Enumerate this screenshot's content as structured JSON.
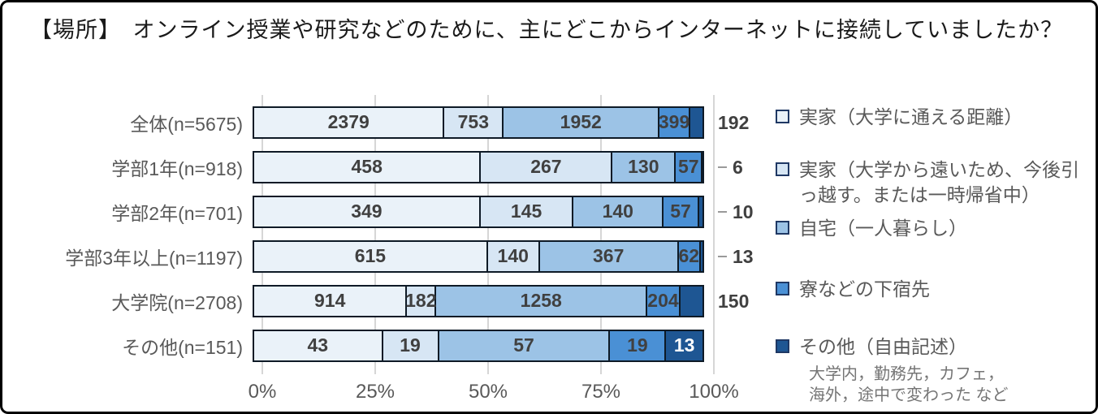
{
  "title": "【場所】　オンライン授業や研究などのために、主にどこからインターネットに接続していましたか？",
  "chart_data": {
    "type": "bar",
    "subtype": "horizontal-100pct-stacked",
    "title": "【場所】　オンライン授業や研究などのために、主にどこからインターネットに接続していましたか？",
    "categories": [
      "全体(n=5675)",
      "学部1年(n=918)",
      "学部2年(n=701)",
      "学部3年以上(n=1197)",
      "大学院(n=2708)",
      "その他(n=151)"
    ],
    "row_totals": [
      5675,
      918,
      701,
      1197,
      2708,
      151
    ],
    "series": [
      {
        "name": "実家（大学に通える距離）",
        "color": "#EAF2F9",
        "values": [
          2379,
          458,
          349,
          615,
          914,
          43
        ]
      },
      {
        "name": "実家（大学から遠いため、今後引っ越す。または一時帰省中）",
        "color": "#D7E6F4",
        "values": [
          753,
          267,
          145,
          140,
          182,
          19
        ]
      },
      {
        "name": "自宅（一人暮らし）",
        "color": "#9CC3E6",
        "values": [
          1952,
          130,
          140,
          367,
          1258,
          57
        ]
      },
      {
        "name": "寮などの下宿先",
        "color": "#4A90D5",
        "values": [
          399,
          57,
          57,
          62,
          204,
          19
        ]
      },
      {
        "name": "その他（自由記述）",
        "color": "#1E5693",
        "values": [
          192,
          6,
          10,
          13,
          150,
          13
        ]
      }
    ],
    "x_ticks": [
      "0%",
      "25%",
      "50%",
      "75%",
      "100%"
    ],
    "xlim": [
      0,
      100
    ],
    "grid": true,
    "legend_position": "right",
    "legend_note_lines": [
      "大学内，勤務先，カフェ，",
      "海外，途中で変わった など"
    ],
    "last_segment_label_placement": [
      "outside",
      "outside-dash",
      "outside-dash",
      "outside-dash",
      "outside",
      "inside-white"
    ]
  },
  "styles": {
    "title_text": "#1A1A1A",
    "category_text": "#595959",
    "axis_text": "#595959",
    "legend_text": "#595959",
    "note_text": "#757575",
    "label_in_bar": "#404040",
    "gridline": "#D6D6D6",
    "segment_border": "#0E1A26",
    "swatch_border": "#1F3864"
  }
}
